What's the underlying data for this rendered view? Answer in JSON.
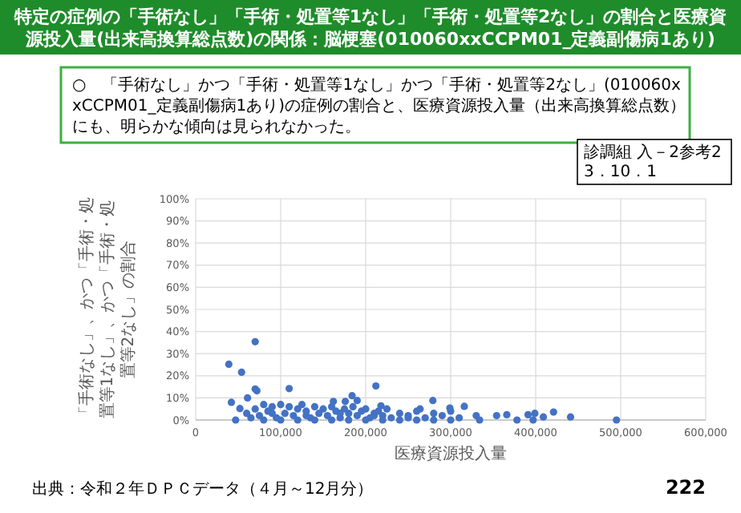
{
  "chart_data": {
    "type": "scatter",
    "title": "特定の症例の「手術なし」「手術・処置等1なし」「手術・処置等2なし」の割合と医療資源投入量(出来高換算総点数)の関係：脳梗塞(010060xxCCPM01_定義副傷病1あり)",
    "subtitle": "○　「手術なし」かつ「手術・処置等1なし」かつ「手術・処置等2なし」(010060xxCCPM01_定義副傷病1あり)の症例の割合と、医療資源投入量（出来高換算総点数）にも、明らかな傾向は見られなかった。",
    "xlabel": "医療資源投入量",
    "ylabel": "「手術なし」、かつ「手術・処置等1なし」、かつ「手術・処置等2なし」の割合",
    "annotations": [
      "診調組 入－2参考2\n3．10．1",
      "出典：令和２年ＤＰＣデータ（４月～12月分）",
      "222"
    ],
    "xlim": [
      0,
      600000
    ],
    "xticks": [
      0,
      {
        "value": 100000,
        "label": "100,000"
      },
      {
        "value": 200000,
        "label": "200,000"
      },
      {
        "value": 300000,
        "label": "300,000"
      },
      {
        "value": 400000,
        "label": "400,000"
      },
      {
        "value": 500000,
        "label": "500,000"
      },
      {
        "value": 600000,
        "label": "600,000"
      }
    ],
    "ylim": [
      0,
      100
    ],
    "yticks": [
      {
        "value": 0,
        "label": "0%"
      },
      {
        "value": 10,
        "label": "10%"
      },
      {
        "value": 20,
        "label": "20%"
      },
      {
        "value": 30,
        "label": "30%"
      },
      {
        "value": 40,
        "label": "40%"
      },
      {
        "value": 50,
        "label": "50%"
      },
      {
        "value": 60,
        "label": "60%"
      },
      {
        "value": 70,
        "label": "70%"
      },
      {
        "value": 80,
        "label": "80%"
      },
      {
        "value": 90,
        "label": "90%"
      },
      {
        "value": 100,
        "label": "100%"
      }
    ],
    "grid": true,
    "marker": "circle",
    "series": [
      {
        "color": "#4472c4",
        "x": [
          39000,
          54000,
          70000,
          42000,
          52000,
          70000,
          72000,
          61000,
          110000,
          212000,
          184000,
          279000,
          316000,
          264000,
          299000,
          330000,
          354000,
          366000,
          391000,
          399000,
          409000,
          421000,
          441000,
          495000,
          47000,
          334000,
          378000,
          397000,
          162000,
          176000,
          190000,
          218000,
          60000,
          65000,
          70000,
          75000,
          80000,
          85000,
          90000,
          95000,
          100000,
          105000,
          110000,
          115000,
          120000,
          125000,
          130000,
          135000,
          140000,
          145000,
          150000,
          155000,
          160000,
          165000,
          170000,
          175000,
          180000,
          185000,
          190000,
          195000,
          200000,
          205000,
          210000,
          215000,
          220000,
          225000,
          230000,
          240000,
          250000,
          260000,
          270000,
          280000,
          290000,
          300000,
          310000,
          80000,
          100000,
          120000,
          140000,
          160000,
          180000,
          200000,
          220000,
          240000,
          260000,
          280000,
          300000,
          90000,
          130000,
          170000,
          210000,
          250000
        ],
        "values": [
          25.2,
          21.6,
          35.4,
          8,
          5.2,
          14,
          13.2,
          10,
          14.2,
          15.4,
          11,
          8.8,
          6.2,
          5,
          5.4,
          2,
          2,
          2.4,
          2.4,
          3,
          1.4,
          3.6,
          1.4,
          0,
          0,
          0,
          0,
          0,
          8.4,
          8.4,
          8.8,
          6.4,
          3,
          1,
          5,
          2,
          7,
          4,
          6,
          1,
          7,
          3,
          6,
          2,
          5,
          7,
          4,
          1,
          6,
          3,
          5,
          2,
          6,
          4,
          1,
          5,
          3,
          6,
          2,
          4,
          5,
          1,
          3,
          4,
          2,
          5,
          1,
          3,
          2,
          4,
          1,
          3,
          2,
          4,
          1,
          0,
          0,
          0,
          0,
          0,
          0,
          0,
          0,
          0,
          0,
          0,
          0,
          3,
          2,
          3,
          2,
          1
        ]
      }
    ]
  }
}
